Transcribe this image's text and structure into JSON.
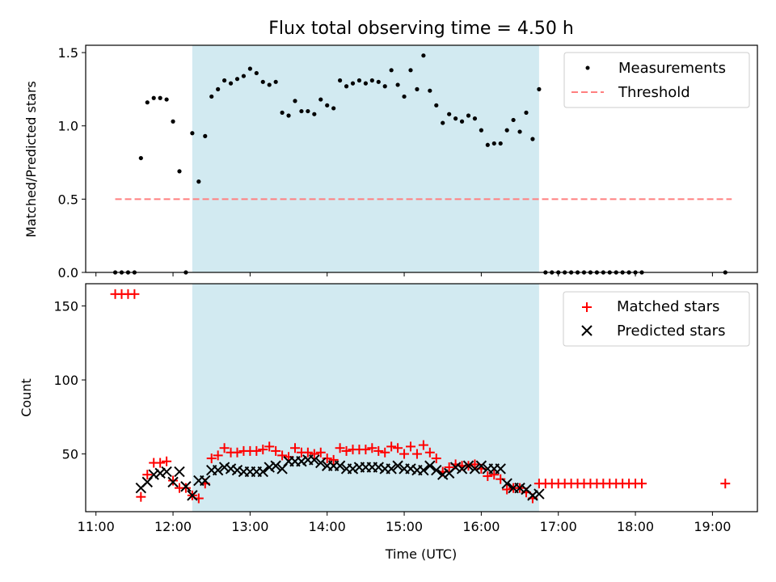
{
  "chart_data": [
    {
      "type": "scatter",
      "title": "Flux total observing time = 4.50 h",
      "xlabel": "",
      "ylabel": "Matched/Predicted stars",
      "ylim": [
        0,
        1.55
      ],
      "yticks": [
        "0.0",
        "0.5",
        "1.0",
        "1.5"
      ],
      "xlim": [
        "10:52",
        "19:35"
      ],
      "xticks": [
        "11:00",
        "12:00",
        "13:00",
        "14:00",
        "15:00",
        "16:00",
        "17:00",
        "18:00",
        "19:00"
      ],
      "highlight_span": [
        "12:15",
        "16:45"
      ],
      "highlight_color": "#add8e6",
      "legend": {
        "position": "top-right",
        "entries": [
          "Measurements",
          "Threshold"
        ]
      },
      "series": [
        {
          "name": "Measurements",
          "marker": "dot",
          "color": "#000000",
          "x": [
            "11:15",
            "11:20",
            "11:25",
            "11:30",
            "11:35",
            "11:40",
            "11:45",
            "11:50",
            "11:55",
            "12:00",
            "12:05",
            "12:10",
            "12:15",
            "12:20",
            "12:25",
            "12:30",
            "12:35",
            "12:40",
            "12:45",
            "12:50",
            "12:55",
            "13:00",
            "13:05",
            "13:10",
            "13:15",
            "13:20",
            "13:25",
            "13:30",
            "13:35",
            "13:40",
            "13:45",
            "13:50",
            "13:55",
            "14:00",
            "14:05",
            "14:10",
            "14:15",
            "14:20",
            "14:25",
            "14:30",
            "14:35",
            "14:40",
            "14:45",
            "14:50",
            "14:55",
            "15:00",
            "15:05",
            "15:10",
            "15:15",
            "15:20",
            "15:25",
            "15:30",
            "15:35",
            "15:40",
            "15:45",
            "15:50",
            "15:55",
            "16:00",
            "16:05",
            "16:10",
            "16:15",
            "16:20",
            "16:25",
            "16:30",
            "16:35",
            "16:40",
            "16:45",
            "16:50",
            "16:55",
            "17:00",
            "17:05",
            "17:10",
            "17:15",
            "17:20",
            "17:25",
            "17:30",
            "17:35",
            "17:40",
            "17:45",
            "17:50",
            "17:55",
            "18:00",
            "18:05",
            "19:10"
          ],
          "y": [
            0,
            0,
            0,
            0,
            0.78,
            1.16,
            1.19,
            1.19,
            1.18,
            1.03,
            0.69,
            0,
            0.95,
            0.62,
            0.93,
            1.2,
            1.25,
            1.31,
            1.29,
            1.32,
            1.34,
            1.39,
            1.36,
            1.3,
            1.28,
            1.3,
            1.09,
            1.07,
            1.17,
            1.1,
            1.1,
            1.08,
            1.18,
            1.14,
            1.12,
            1.31,
            1.27,
            1.29,
            1.31,
            1.29,
            1.31,
            1.3,
            1.27,
            1.38,
            1.28,
            1.2,
            1.38,
            1.25,
            1.48,
            1.24,
            1.14,
            1.02,
            1.08,
            1.05,
            1.03,
            1.07,
            1.05,
            0.97,
            0.87,
            0.88,
            0.88,
            0.97,
            1.04,
            0.96,
            1.09,
            0.91,
            1.25,
            0,
            0,
            0,
            0,
            0,
            0,
            0,
            0,
            0,
            0,
            0,
            0,
            0,
            0,
            0,
            0,
            0
          ]
        },
        {
          "name": "Threshold",
          "style": "dashed",
          "color": "#ff7f7f",
          "x": [
            "11:15",
            "19:15"
          ],
          "y": [
            0.5,
            0.5
          ]
        }
      ]
    },
    {
      "type": "scatter",
      "title": "",
      "xlabel": "Time (UTC)",
      "ylabel": "Count",
      "ylim": [
        11,
        165
      ],
      "yticks": [
        "50",
        "100",
        "150"
      ],
      "xlim": [
        "10:52",
        "19:35"
      ],
      "xticks": [
        "11:00",
        "12:00",
        "13:00",
        "14:00",
        "15:00",
        "16:00",
        "17:00",
        "18:00",
        "19:00"
      ],
      "highlight_span": [
        "12:15",
        "16:45"
      ],
      "highlight_color": "#add8e6",
      "legend": {
        "position": "top-right",
        "entries": [
          "Matched stars",
          "Predicted stars"
        ]
      },
      "series": [
        {
          "name": "Matched stars",
          "marker": "plus",
          "color": "#ff0000",
          "x": [
            "11:15",
            "11:20",
            "11:25",
            "11:30",
            "11:35",
            "11:40",
            "11:45",
            "11:50",
            "11:55",
            "12:00",
            "12:05",
            "12:10",
            "12:15",
            "12:20",
            "12:25",
            "12:30",
            "12:35",
            "12:40",
            "12:45",
            "12:50",
            "12:55",
            "13:00",
            "13:05",
            "13:10",
            "13:15",
            "13:20",
            "13:25",
            "13:30",
            "13:35",
            "13:40",
            "13:45",
            "13:50",
            "13:55",
            "14:00",
            "14:05",
            "14:10",
            "14:15",
            "14:20",
            "14:25",
            "14:30",
            "14:35",
            "14:40",
            "14:45",
            "14:50",
            "14:55",
            "15:00",
            "15:05",
            "15:10",
            "15:15",
            "15:20",
            "15:25",
            "15:30",
            "15:35",
            "15:40",
            "15:45",
            "15:50",
            "15:55",
            "16:00",
            "16:05",
            "16:10",
            "16:15",
            "16:20",
            "16:25",
            "16:30",
            "16:35",
            "16:40",
            "16:45",
            "16:50",
            "16:55",
            "17:00",
            "17:05",
            "17:10",
            "17:15",
            "17:20",
            "17:25",
            "17:30",
            "17:35",
            "17:40",
            "17:45",
            "17:50",
            "17:55",
            "18:00",
            "18:05",
            "19:10"
          ],
          "y": [
            158,
            158,
            158,
            158,
            21,
            36,
            44,
            44,
            45,
            32,
            27,
            27,
            22,
            20,
            30,
            47,
            49,
            54,
            51,
            51,
            52,
            52,
            52,
            53,
            55,
            52,
            49,
            48,
            54,
            51,
            51,
            50,
            51,
            47,
            46,
            54,
            52,
            53,
            53,
            53,
            54,
            52,
            51,
            55,
            54,
            50,
            55,
            50,
            56,
            51,
            47,
            38,
            41,
            43,
            42,
            42,
            43,
            40,
            35,
            36,
            33,
            26,
            27,
            27,
            24,
            20,
            30,
            30,
            30,
            30,
            30,
            30,
            30,
            30,
            30,
            30,
            30,
            30,
            30,
            30,
            30,
            30,
            30,
            30
          ]
        },
        {
          "name": "Predicted stars",
          "marker": "x",
          "color": "#000000",
          "x": [
            "11:35",
            "11:40",
            "11:45",
            "11:50",
            "11:55",
            "12:00",
            "12:05",
            "12:10",
            "12:15",
            "12:20",
            "12:25",
            "12:30",
            "12:35",
            "12:40",
            "12:45",
            "12:50",
            "12:55",
            "13:00",
            "13:05",
            "13:10",
            "13:15",
            "13:20",
            "13:25",
            "13:30",
            "13:35",
            "13:40",
            "13:45",
            "13:50",
            "13:55",
            "14:00",
            "14:05",
            "14:10",
            "14:15",
            "14:20",
            "14:25",
            "14:30",
            "14:35",
            "14:40",
            "14:45",
            "14:50",
            "14:55",
            "15:00",
            "15:05",
            "15:10",
            "15:15",
            "15:20",
            "15:25",
            "15:30",
            "15:35",
            "15:40",
            "15:45",
            "15:50",
            "15:55",
            "16:00",
            "16:05",
            "16:10",
            "16:15",
            "16:20",
            "16:25",
            "16:30",
            "16:35",
            "16:40",
            "16:45"
          ],
          "y": [
            27,
            31,
            36,
            37,
            38,
            31,
            38,
            28,
            22,
            32,
            32,
            39,
            39,
            41,
            40,
            39,
            38,
            38,
            38,
            38,
            41,
            42,
            40,
            45,
            45,
            45,
            46,
            46,
            44,
            42,
            42,
            42,
            40,
            40,
            41,
            41,
            41,
            41,
            40,
            40,
            42,
            40,
            40,
            39,
            39,
            42,
            39,
            36,
            37,
            41,
            40,
            42,
            40,
            42,
            40,
            40,
            40,
            30,
            27,
            27,
            26,
            22,
            23
          ]
        }
      ]
    }
  ]
}
